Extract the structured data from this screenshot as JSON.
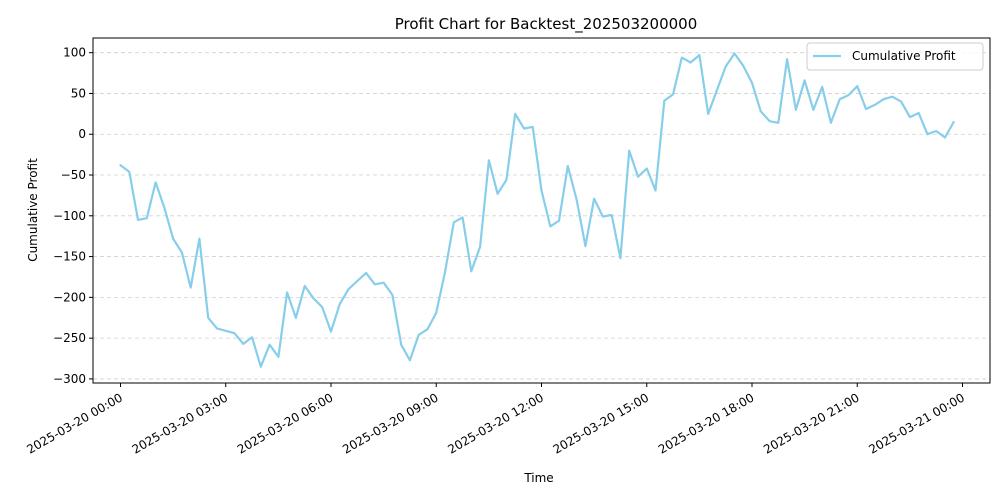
{
  "chart_data": {
    "type": "line",
    "title": "Profit Chart for Backtest_202503200000",
    "xlabel": "Time",
    "ylabel": "Cumulative Profit",
    "xlim": [
      "2025-03-19 23:13",
      "2025-03-21 00:47"
    ],
    "ylim": [
      -305,
      118
    ],
    "y_ticks": [
      100,
      50,
      0,
      -50,
      -100,
      -150,
      -200,
      -250,
      -300
    ],
    "y_tick_labels": [
      "100",
      "50",
      "0",
      "−50",
      "−100",
      "−150",
      "−200",
      "−250",
      "−300"
    ],
    "x_ticks": [
      "2025-03-20 00:00",
      "2025-03-20 03:00",
      "2025-03-20 06:00",
      "2025-03-20 09:00",
      "2025-03-20 12:00",
      "2025-03-20 15:00",
      "2025-03-20 18:00",
      "2025-03-20 21:00",
      "2025-03-21 00:00"
    ],
    "x_tick_labels": [
      "2025-03-20 00:00",
      "2025-03-20 03:00",
      "2025-03-20 06:00",
      "2025-03-20 09:00",
      "2025-03-20 12:00",
      "2025-03-20 15:00",
      "2025-03-20 18:00",
      "2025-03-20 21:00",
      "2025-03-21 00:00"
    ],
    "grid": "y-dashed",
    "legend_position": "top-right",
    "series": [
      {
        "name": "Cumulative Profit",
        "color": "#87ceeb",
        "points": [
          [
            "2025-03-20 00:00",
            -38
          ],
          [
            "2025-03-20 00:15",
            -46
          ],
          [
            "2025-03-20 00:30",
            -105
          ],
          [
            "2025-03-20 00:45",
            -103
          ],
          [
            "2025-03-20 01:00",
            -59
          ],
          [
            "2025-03-20 01:15",
            -90
          ],
          [
            "2025-03-20 01:30",
            -128
          ],
          [
            "2025-03-20 01:45",
            -145
          ],
          [
            "2025-03-20 02:00",
            -188
          ],
          [
            "2025-03-20 02:15",
            -128
          ],
          [
            "2025-03-20 02:30",
            -225
          ],
          [
            "2025-03-20 02:45",
            -238
          ],
          [
            "2025-03-20 03:00",
            -241
          ],
          [
            "2025-03-20 03:15",
            -244
          ],
          [
            "2025-03-20 03:30",
            -257
          ],
          [
            "2025-03-20 03:45",
            -249
          ],
          [
            "2025-03-20 04:00",
            -285
          ],
          [
            "2025-03-20 04:15",
            -258
          ],
          [
            "2025-03-20 04:30",
            -273
          ],
          [
            "2025-03-20 04:45",
            -194
          ],
          [
            "2025-03-20 05:00",
            -225
          ],
          [
            "2025-03-20 05:15",
            -186
          ],
          [
            "2025-03-20 05:30",
            -201
          ],
          [
            "2025-03-20 05:45",
            -212
          ],
          [
            "2025-03-20 06:00",
            -242
          ],
          [
            "2025-03-20 06:15",
            -208
          ],
          [
            "2025-03-20 06:30",
            -190
          ],
          [
            "2025-03-20 06:45",
            -180
          ],
          [
            "2025-03-20 07:00",
            -170
          ],
          [
            "2025-03-20 07:15",
            -184
          ],
          [
            "2025-03-20 07:30",
            -182
          ],
          [
            "2025-03-20 07:45",
            -197
          ],
          [
            "2025-03-20 08:00",
            -258
          ],
          [
            "2025-03-20 08:15",
            -277
          ],
          [
            "2025-03-20 08:30",
            -246
          ],
          [
            "2025-03-20 08:45",
            -239
          ],
          [
            "2025-03-20 09:00",
            -219
          ],
          [
            "2025-03-20 09:15",
            -169
          ],
          [
            "2025-03-20 09:30",
            -108
          ],
          [
            "2025-03-20 09:45",
            -102
          ],
          [
            "2025-03-20 10:00",
            -168
          ],
          [
            "2025-03-20 10:15",
            -138
          ],
          [
            "2025-03-20 10:30",
            -32
          ],
          [
            "2025-03-20 10:45",
            -73
          ],
          [
            "2025-03-20 11:00",
            -56
          ],
          [
            "2025-03-20 11:15",
            25
          ],
          [
            "2025-03-20 11:30",
            7
          ],
          [
            "2025-03-20 11:45",
            9
          ],
          [
            "2025-03-20 12:00",
            -69
          ],
          [
            "2025-03-20 12:15",
            -113
          ],
          [
            "2025-03-20 12:30",
            -106
          ],
          [
            "2025-03-20 12:45",
            -39
          ],
          [
            "2025-03-20 13:00",
            -80
          ],
          [
            "2025-03-20 13:15",
            -137
          ],
          [
            "2025-03-20 13:30",
            -79
          ],
          [
            "2025-03-20 13:45",
            -101
          ],
          [
            "2025-03-20 14:00",
            -99
          ],
          [
            "2025-03-20 14:15",
            -152
          ],
          [
            "2025-03-20 14:30",
            -20
          ],
          [
            "2025-03-20 14:45",
            -52
          ],
          [
            "2025-03-20 15:00",
            -42
          ],
          [
            "2025-03-20 15:15",
            -69
          ],
          [
            "2025-03-20 15:30",
            41
          ],
          [
            "2025-03-20 15:45",
            49
          ],
          [
            "2025-03-20 16:00",
            94
          ],
          [
            "2025-03-20 16:15",
            88
          ],
          [
            "2025-03-20 16:30",
            97
          ],
          [
            "2025-03-20 16:45",
            25
          ],
          [
            "2025-03-20 17:00",
            54
          ],
          [
            "2025-03-20 17:15",
            83
          ],
          [
            "2025-03-20 17:30",
            99
          ],
          [
            "2025-03-20 17:45",
            84
          ],
          [
            "2025-03-20 18:00",
            63
          ],
          [
            "2025-03-20 18:15",
            28
          ],
          [
            "2025-03-20 18:30",
            16
          ],
          [
            "2025-03-20 18:45",
            14
          ],
          [
            "2025-03-20 19:00",
            92
          ],
          [
            "2025-03-20 19:15",
            30
          ],
          [
            "2025-03-20 19:30",
            66
          ],
          [
            "2025-03-20 19:45",
            30
          ],
          [
            "2025-03-20 20:00",
            58
          ],
          [
            "2025-03-20 20:15",
            14
          ],
          [
            "2025-03-20 20:30",
            43
          ],
          [
            "2025-03-20 20:45",
            48
          ],
          [
            "2025-03-20 21:00",
            59
          ],
          [
            "2025-03-20 21:15",
            31
          ],
          [
            "2025-03-20 21:30",
            36
          ],
          [
            "2025-03-20 21:45",
            43
          ],
          [
            "2025-03-20 22:00",
            46
          ],
          [
            "2025-03-20 22:15",
            40
          ],
          [
            "2025-03-20 22:30",
            21
          ],
          [
            "2025-03-20 22:45",
            26
          ],
          [
            "2025-03-20 23:00",
            0
          ],
          [
            "2025-03-20 23:15",
            4
          ],
          [
            "2025-03-20 23:30",
            -4
          ],
          [
            "2025-03-20 23:45",
            15
          ]
        ]
      }
    ]
  }
}
